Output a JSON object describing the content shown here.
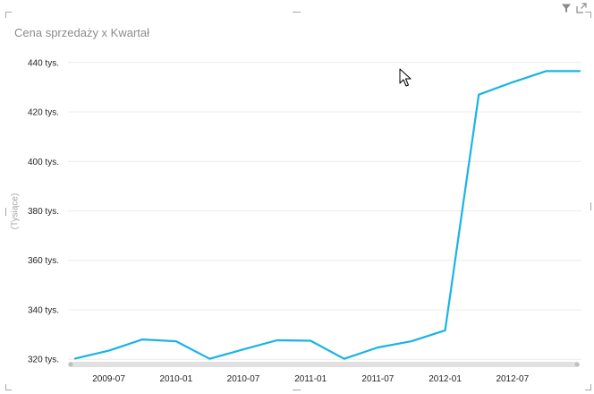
{
  "title": "Cena sprzedaży x Kwartał",
  "y_unit_label": "(Tysiące)",
  "colors": {
    "line": "#1ab3e6",
    "gridline": "#ececec",
    "tick_text": "#252423",
    "title_text": "#8c8c8c",
    "scrollbar": "#e1e1e1"
  },
  "header_icons": [
    "filter-icon",
    "focus-mode-icon"
  ],
  "chart_data": {
    "type": "line",
    "title": "Cena sprzedaży x Kwartał",
    "ylabel": "(Tysiące)",
    "xlabel": "",
    "grid": true,
    "ylim": [
      319,
      441
    ],
    "xlim": [
      "2009-04",
      "2013-01"
    ],
    "y_ticks": [
      {
        "value": 320,
        "label": "320 tys."
      },
      {
        "value": 340,
        "label": "340 tys."
      },
      {
        "value": 360,
        "label": "360 tys."
      },
      {
        "value": 380,
        "label": "380 tys."
      },
      {
        "value": 400,
        "label": "400 tys."
      },
      {
        "value": 420,
        "label": "420 tys."
      },
      {
        "value": 440,
        "label": "440 tys."
      }
    ],
    "x_ticks": [
      {
        "value": "2009-07",
        "label": "2009-07"
      },
      {
        "value": "2010-01",
        "label": "2010-01"
      },
      {
        "value": "2010-07",
        "label": "2010-07"
      },
      {
        "value": "2011-01",
        "label": "2011-01"
      },
      {
        "value": "2011-07",
        "label": "2011-07"
      },
      {
        "value": "2012-01",
        "label": "2012-01"
      },
      {
        "value": "2012-07",
        "label": "2012-07"
      }
    ],
    "series": [
      {
        "x": [
          "2009-04",
          "2009-07",
          "2009-10",
          "2010-01",
          "2010-04",
          "2010-07",
          "2010-10",
          "2011-01",
          "2011-04",
          "2011-07",
          "2011-10",
          "2012-01",
          "2012-04",
          "2012-07",
          "2012-10",
          "2013-01"
        ],
        "values": [
          320.3,
          323.5,
          328.0,
          327.3,
          320.2,
          324.0,
          327.7,
          327.5,
          320.2,
          324.8,
          327.3,
          331.7,
          427.0,
          432.0,
          436.5,
          436.5
        ]
      }
    ]
  }
}
